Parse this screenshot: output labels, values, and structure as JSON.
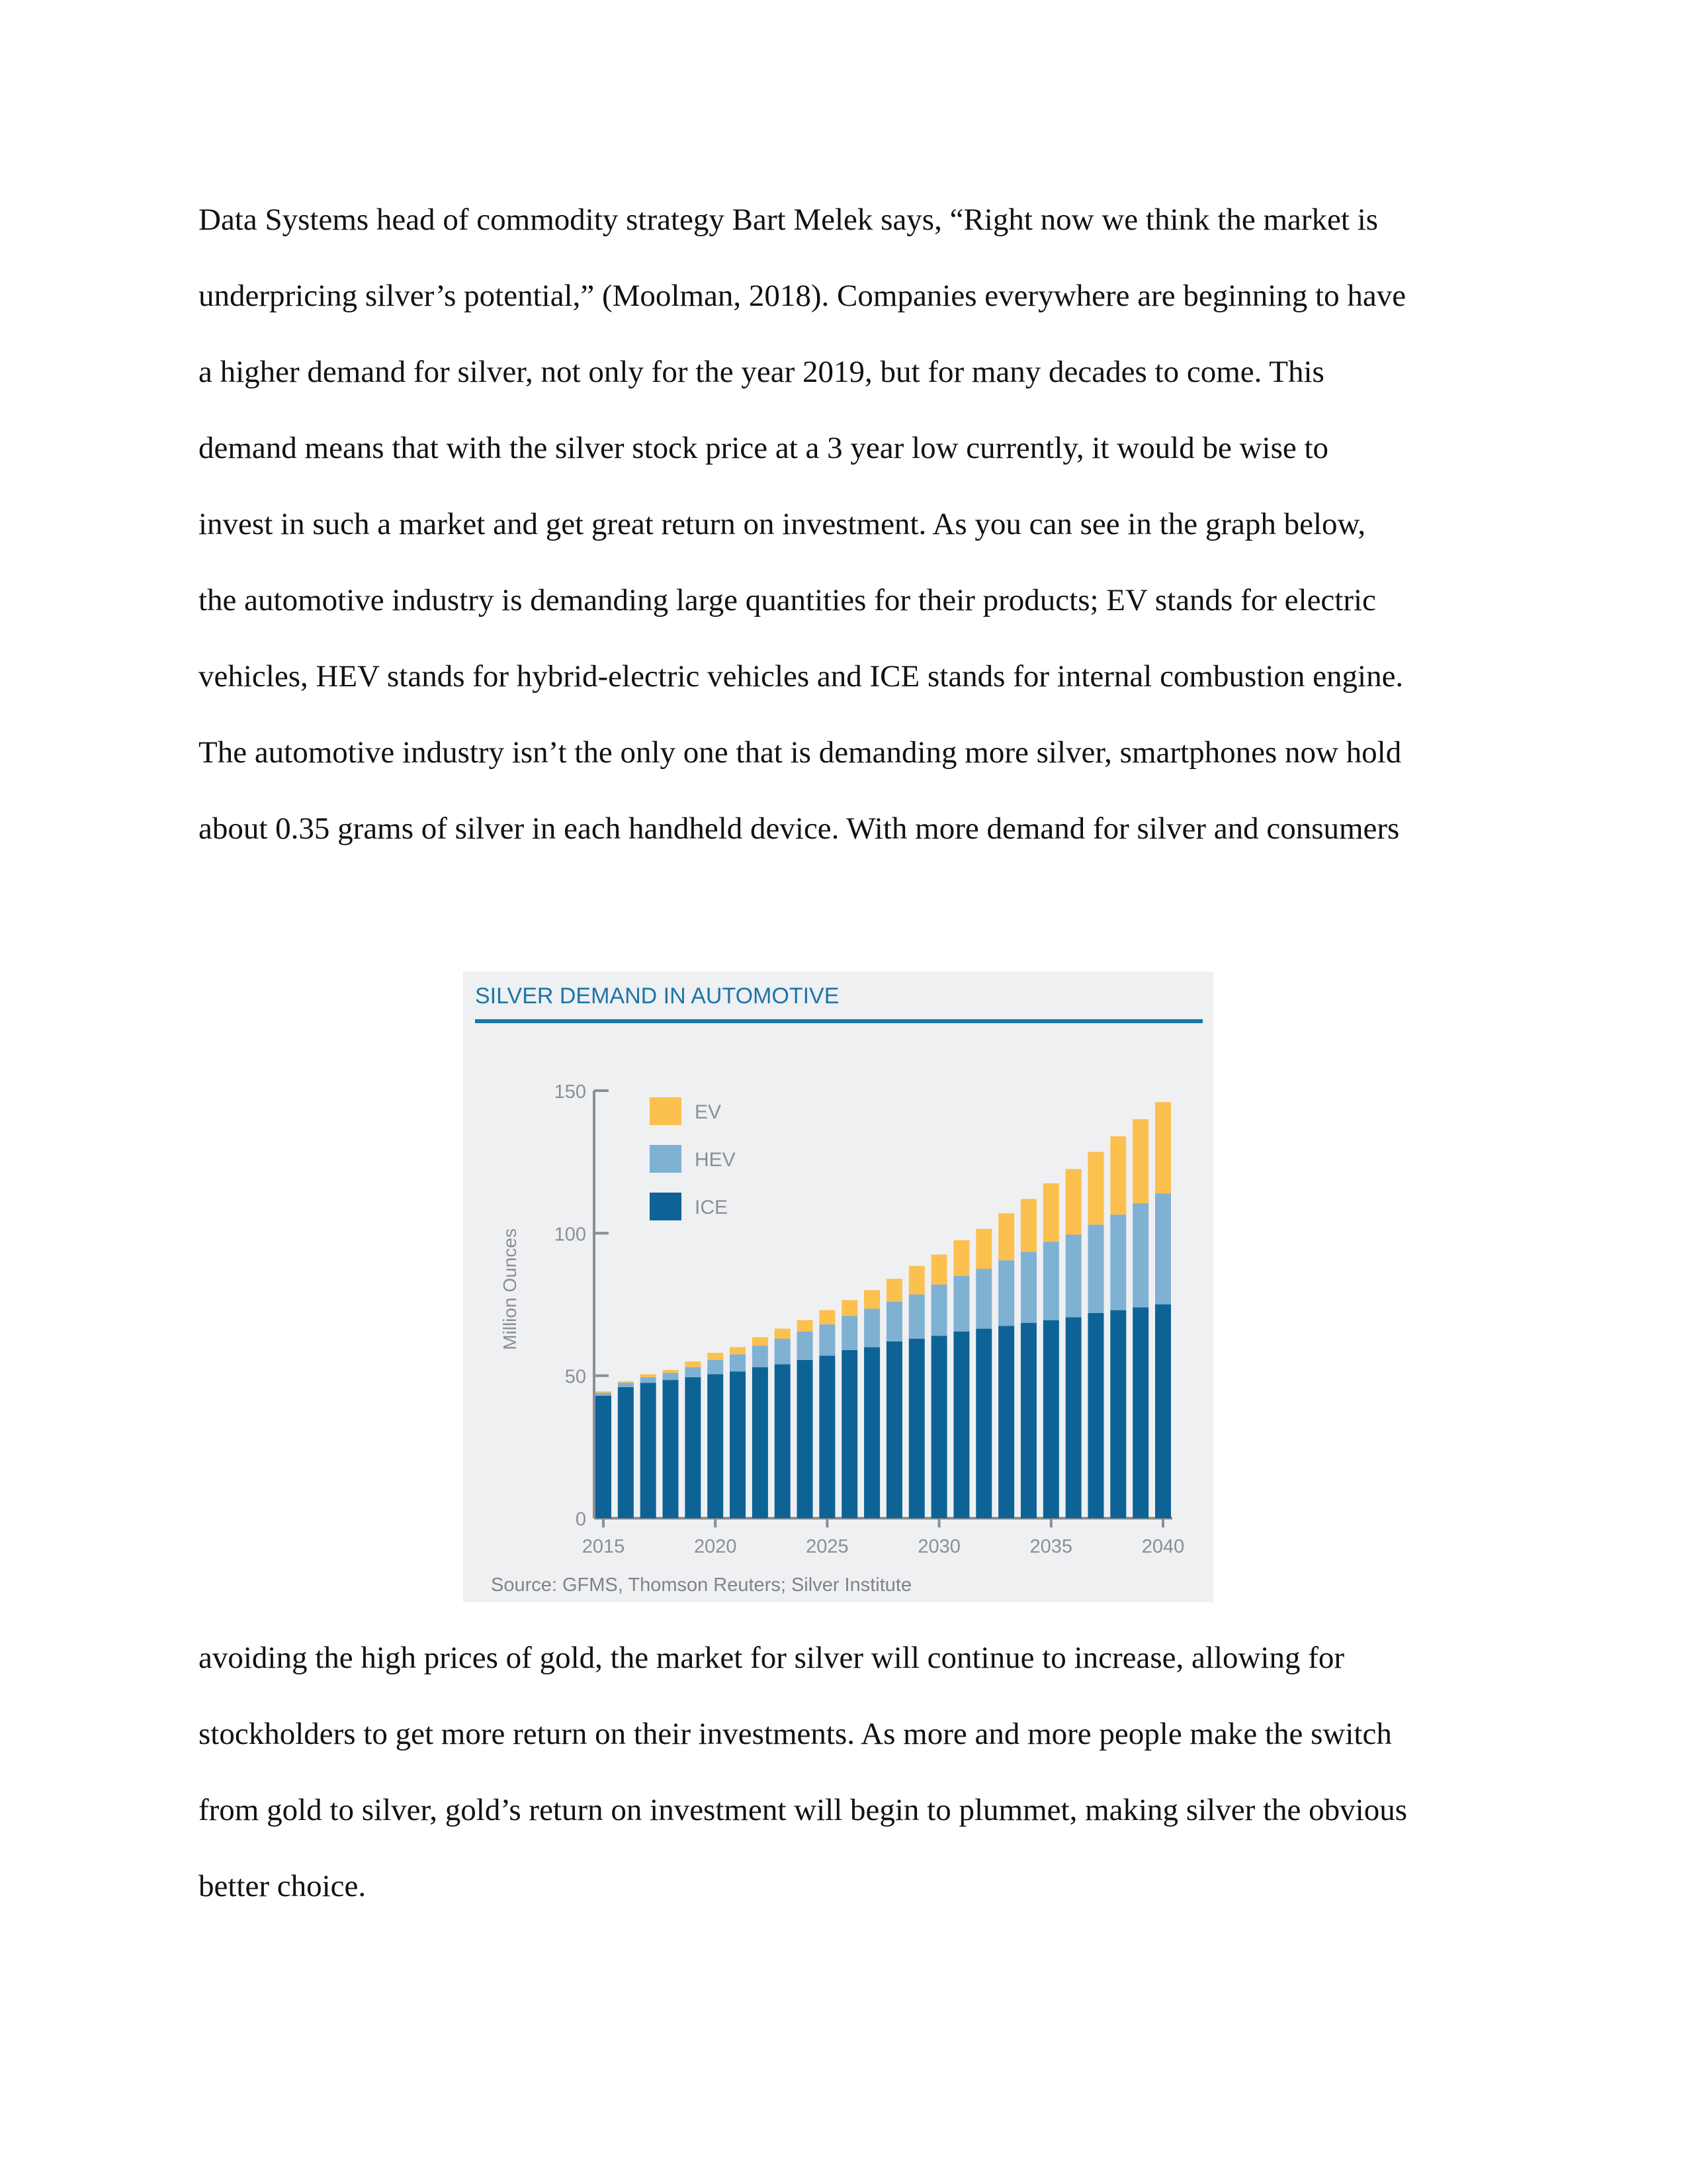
{
  "paragraph_1": {
    "lines": [
      "Data Systems head of commodity strategy Bart Melek says, “Right now we think the market is",
      "underpricing silver’s potential,” (Moolman, 2018). Companies everywhere are beginning to have",
      "a higher demand for silver, not only for the year 2019, but for many decades to come. This",
      "demand means that with the silver stock price at a 3 year low currently, it would be wise to",
      "invest in such a market and get great return on investment.  As you can see in the graph below,",
      "the automotive industry is demanding large quantities for their products; EV stands for electric",
      "vehicles, HEV stands for hybrid-electric vehicles and ICE stands for internal combustion engine.",
      "The automotive industry isn’t the only one that is demanding more silver, smartphones now hold",
      "about 0.35 grams of silver in each handheld device. With more demand for silver and consumers"
    ]
  },
  "paragraph_2": {
    "lines": [
      "avoiding the high prices of gold, the market for silver will continue to increase, allowing for",
      "stockholders to get more return on their investments. As more and more people make the switch",
      "from gold to silver, gold’s return on investment will begin to plummet, making silver the obvious",
      "better choice."
    ]
  },
  "chart_data": {
    "type": "bar",
    "stacked": true,
    "title": "SILVER DEMAND IN AUTOMOTIVE",
    "ylabel": "Million Ounces",
    "xlabel": "",
    "ylim": [
      0,
      150
    ],
    "yticks": [
      0,
      50,
      100,
      150
    ],
    "xticks": [
      "2015",
      "2020",
      "2025",
      "2030",
      "2035",
      "2040"
    ],
    "legend_position": "top-left",
    "source": "Source: GFMS, Thomson Reuters; Silver Institute",
    "categories": [
      "2015",
      "2016",
      "2017",
      "2018",
      "2019",
      "2020",
      "2021",
      "2022",
      "2023",
      "2024",
      "2025",
      "2026",
      "2027",
      "2028",
      "2029",
      "2030",
      "2031",
      "2032",
      "2033",
      "2034",
      "2035",
      "2036",
      "2037",
      "2038",
      "2039",
      "2040"
    ],
    "series": [
      {
        "name": "ICE",
        "color": "#0d6396",
        "values": [
          43,
          46,
          47.5,
          48.5,
          49.5,
          50.5,
          51.5,
          53,
          54,
          55.5,
          57,
          59,
          60,
          62,
          63,
          64,
          65.5,
          66.5,
          67.5,
          68.5,
          69.5,
          70.5,
          72,
          73,
          74,
          75
        ]
      },
      {
        "name": "HEV",
        "color": "#7fb1d3",
        "values": [
          1,
          1.5,
          2,
          2.5,
          3.5,
          5,
          6,
          7.5,
          9,
          10,
          11,
          12,
          13.5,
          14,
          15.5,
          18,
          19.5,
          21,
          23,
          25,
          27.5,
          29,
          31,
          33.5,
          36.5,
          39
        ]
      },
      {
        "name": "EV",
        "color": "#fbc04e",
        "values": [
          0.5,
          0.5,
          1,
          1,
          2,
          2.5,
          2.5,
          3,
          3.5,
          4,
          5,
          5.5,
          6.5,
          8,
          10,
          10.5,
          12.5,
          14,
          16.5,
          18.5,
          20.5,
          23,
          25.5,
          27.5,
          29.5,
          32
        ]
      }
    ]
  },
  "colors": {
    "title": "#1c75a8",
    "rule": "#1c75a8",
    "axis": "#8b8f93",
    "tick_label": "#8b8f93",
    "source": "#808488",
    "panel": "#eff0f2"
  }
}
